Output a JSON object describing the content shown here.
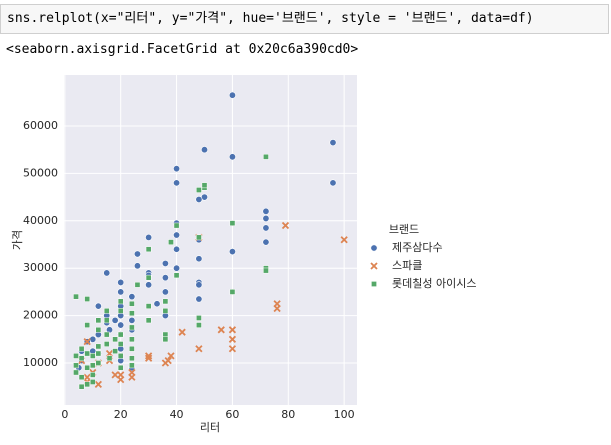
{
  "code": "sns.relplot(x=\"리터\", y=\"가격\", hue='브랜드', style = '브랜드', data=df)",
  "output": "<seaborn.axisgrid.FacetGrid at 0x20c6a390cd0>",
  "chart_data": {
    "type": "scatter",
    "x_label": "리터",
    "y_label": "가격",
    "legend_title": "브랜드",
    "xlim": [
      -0.3,
      104.6
    ],
    "ylim": [
      1140,
      70760
    ],
    "xticks": [
      0,
      20,
      40,
      60,
      80,
      100
    ],
    "yticks": [
      10000,
      20000,
      30000,
      40000,
      50000,
      60000
    ],
    "grid": true,
    "legend": "right",
    "series": [
      {
        "name": "제주삼다수",
        "color": "#4c72b0",
        "marker": "circle",
        "x": [
          40,
          40,
          50,
          60,
          60,
          96,
          96,
          72,
          72,
          72,
          72,
          60,
          50,
          48,
          48,
          48,
          48,
          48,
          48,
          40,
          40,
          40,
          36,
          36,
          36,
          36,
          30,
          30,
          30,
          30,
          26,
          26,
          24,
          20,
          20,
          20,
          20,
          20,
          20,
          15,
          15,
          15,
          12,
          12,
          10,
          10,
          8,
          6,
          6,
          33,
          40,
          16,
          18,
          24,
          24,
          20,
          20,
          24,
          12,
          5
        ],
        "values": [
          48000,
          51000,
          55000,
          66500,
          53500,
          56500,
          48000,
          42000,
          40500,
          38500,
          35500,
          33500,
          45000,
          44500,
          36000,
          32000,
          27000,
          26500,
          23500,
          39500,
          37000,
          34000,
          31000,
          28000,
          25000,
          20000,
          36500,
          29000,
          28500,
          26500,
          33000,
          30500,
          24000,
          27000,
          25000,
          22000,
          20000,
          18000,
          16000,
          29000,
          20000,
          18500,
          22000,
          16000,
          15000,
          12500,
          14500,
          12500,
          10500,
          22500,
          30000,
          17000,
          19000,
          19000,
          17000,
          13000,
          10500,
          9000,
          12000,
          9000
        ]
      },
      {
        "name": "스파클",
        "color": "#dd8452",
        "marker": "x",
        "x": [
          100,
          79,
          76,
          76,
          60,
          60,
          60,
          56,
          48,
          48,
          42,
          38,
          37,
          36,
          30,
          30,
          24,
          24,
          20,
          20,
          18,
          16,
          10,
          8,
          8,
          6,
          12,
          8,
          12,
          16
        ],
        "values": [
          36000,
          39000,
          22500,
          21500,
          17000,
          15000,
          13000,
          17000,
          36500,
          13000,
          16500,
          11500,
          10500,
          10000,
          11500,
          11000,
          8000,
          7000,
          7500,
          6500,
          7500,
          12000,
          8000,
          7000,
          6000,
          10500,
          10000,
          14500,
          5500,
          10500
        ]
      },
      {
        "name": "롯데칠성 아이시스",
        "color": "#55a868",
        "marker": "square",
        "x": [
          72,
          72,
          72,
          60,
          60,
          50,
          50,
          48,
          48,
          48,
          48,
          40,
          40,
          38,
          36,
          36,
          36,
          36,
          30,
          30,
          30,
          30,
          26,
          24,
          24,
          24,
          24,
          24,
          24,
          24,
          20,
          20,
          20,
          20,
          20,
          20,
          15,
          15,
          15,
          15,
          12,
          12,
          12,
          12,
          12,
          10,
          10,
          10,
          10,
          8,
          8,
          8,
          8,
          8,
          6,
          6,
          6,
          6,
          4,
          4,
          4,
          4,
          18,
          18,
          16
        ],
        "values": [
          53500,
          30000,
          29500,
          39500,
          25000,
          47000,
          47500,
          46500,
          36500,
          19500,
          18000,
          39000,
          28500,
          35500,
          23000,
          21000,
          16000,
          15000,
          34000,
          28000,
          22000,
          19000,
          26500,
          13000,
          15000,
          17500,
          20500,
          22500,
          11000,
          9500,
          23000,
          21000,
          16000,
          14000,
          11500,
          9000,
          21000,
          19000,
          16000,
          14000,
          19000,
          17000,
          13500,
          12000,
          10000,
          11500,
          9500,
          7500,
          6000,
          23500,
          18000,
          12000,
          9000,
          5500,
          13000,
          11000,
          7000,
          5000,
          24000,
          11500,
          9500,
          8000,
          15000,
          12500,
          11000
        ]
      }
    ]
  }
}
